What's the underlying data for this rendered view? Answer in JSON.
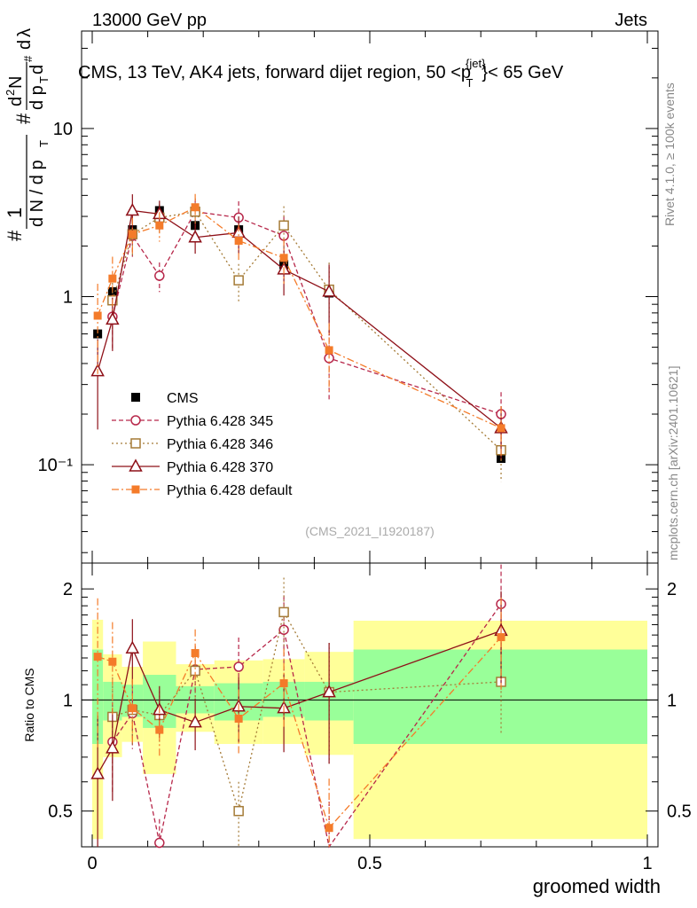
{
  "header": {
    "energy": "13000 GeV pp",
    "process": "Jets",
    "title": "CMS, 13 TeV, AK4 jets, forward dijet region, 50 <p",
    "title_sup": "{jet}",
    "title_sub": "T",
    "title_tail": "}< 65 GeV",
    "rivet": "Rivet 4.1.0, ≥ 100k events",
    "source": "mcplots.cern.ch [arXiv:2401.10621]",
    "analysis": "(CMS_2021_I1920187)"
  },
  "axes": {
    "xlabel": "groomed width",
    "ylabel_main": "1/dN/dp_T  d²N/dp_T dλ",
    "ylabel_ratio": "Ratio to CMS",
    "x_ticks": [
      "0",
      "0.5",
      "1"
    ],
    "y_ticks_main": [
      "10⁻¹",
      "1",
      "10"
    ],
    "y_ticks_ratio": [
      "0.5",
      "1",
      "2"
    ]
  },
  "colors": {
    "cms": "#000000",
    "p345": "#b7274a",
    "p346": "#a57b37",
    "p370": "#8e1018",
    "pdef": "#f47b2a",
    "band_inner": "#99ff99",
    "band_outer": "#ffff99"
  },
  "chart_data": {
    "type": "scatter",
    "x_range": [
      0,
      1
    ],
    "y_range_main": [
      0.026,
      38
    ],
    "y_range_ratio": [
      0.4,
      2.35
    ],
    "x": [
      0.0098,
      0.0365,
      0.0724,
      0.1211,
      0.1855,
      0.2638,
      0.3452,
      0.4267,
      0.7365
    ],
    "bins": [
      [
        0.0,
        0.0195
      ],
      [
        0.0195,
        0.0536
      ],
      [
        0.0536,
        0.0912
      ],
      [
        0.0912,
        0.151
      ],
      [
        0.151,
        0.22
      ],
      [
        0.22,
        0.3077
      ],
      [
        0.3077,
        0.3827
      ],
      [
        0.3827,
        0.4707
      ],
      [
        0.4707,
        1.0
      ]
    ],
    "band_inner": [
      [
        0.76,
        1.37
      ],
      [
        0.88,
        1.12
      ],
      [
        0.9,
        1.1
      ],
      [
        0.84,
        1.17
      ],
      [
        0.92,
        1.09
      ],
      [
        0.88,
        1.11
      ],
      [
        0.9,
        1.12
      ],
      [
        0.88,
        1.12
      ],
      [
        0.76,
        1.37
      ]
    ],
    "band_outer": [
      [
        0.42,
        1.65
      ],
      [
        0.7,
        1.33
      ],
      [
        0.77,
        1.23
      ],
      [
        0.63,
        1.44
      ],
      [
        0.82,
        1.25
      ],
      [
        0.76,
        1.28
      ],
      [
        0.76,
        1.29
      ],
      [
        0.71,
        1.35
      ],
      [
        0.42,
        1.64
      ]
    ],
    "series": [
      {
        "name": "CMS",
        "style": "cms",
        "values": [
          0.6,
          1.07,
          2.5,
          3.25,
          2.65,
          2.5,
          1.55,
          1.05,
          0.109
        ],
        "ratio": [
          1,
          1,
          1,
          1,
          1,
          1,
          1,
          1,
          1
        ]
      },
      {
        "name": "Pythia 6.428 345",
        "style": "p345",
        "values": [
          0.0,
          0.76,
          2.3,
          1.33,
          3.2,
          2.95,
          2.3,
          0.43,
          0.2
        ],
        "ratio": [
          null,
          0.77,
          0.92,
          0.41,
          1.21,
          1.23,
          1.55,
          0.39,
          1.82
        ]
      },
      {
        "name": "Pythia 6.428 346",
        "style": "p346",
        "values": [
          0.0,
          0.95,
          2.35,
          2.95,
          3.2,
          1.25,
          2.65,
          1.1,
          0.122
        ],
        "ratio": [
          null,
          0.9,
          0.94,
          0.91,
          1.2,
          0.5,
          1.73,
          1.05,
          1.12
        ]
      },
      {
        "name": "Pythia 6.428 370",
        "style": "p370",
        "values": [
          0.36,
          0.73,
          3.25,
          3.1,
          2.25,
          2.4,
          1.45,
          1.07,
          0.165
        ],
        "ratio": [
          0.63,
          0.74,
          1.38,
          0.94,
          0.87,
          0.96,
          0.95,
          1.05,
          1.54
        ]
      },
      {
        "name": "Pythia 6.428 default",
        "style": "pdef",
        "values": [
          0.77,
          1.28,
          2.35,
          2.65,
          3.4,
          2.15,
          1.7,
          0.48,
          0.165
        ],
        "ratio": [
          1.31,
          1.27,
          0.95,
          0.83,
          1.34,
          0.89,
          1.11,
          0.45,
          1.48
        ]
      }
    ]
  }
}
